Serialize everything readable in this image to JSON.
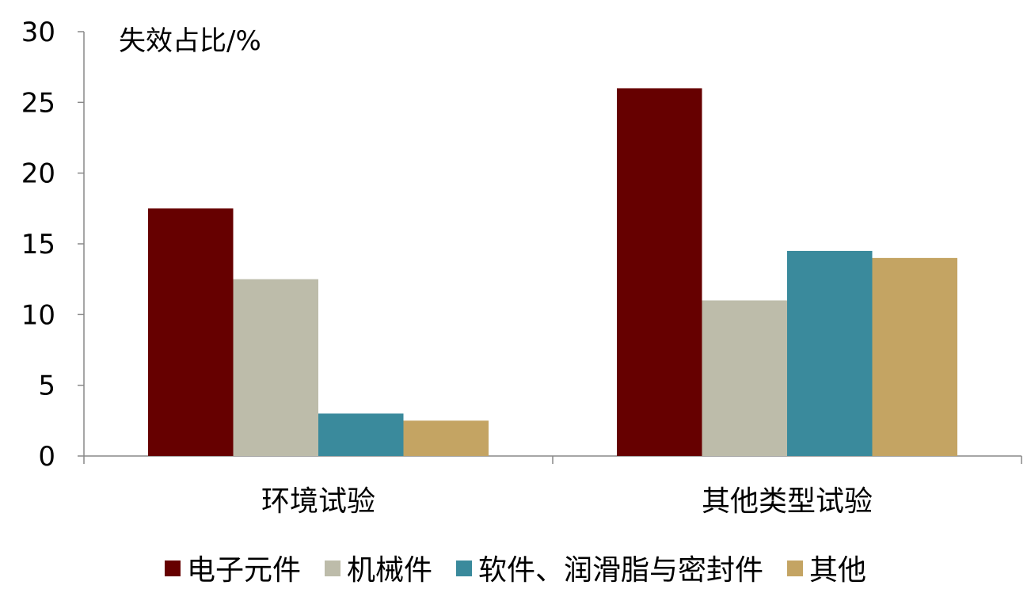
{
  "chart_data": {
    "type": "bar",
    "title": "",
    "xlabel": "",
    "ylabel": "失效占比/%",
    "ylim": [
      0,
      30
    ],
    "yticks": [
      0,
      5,
      10,
      15,
      20,
      25,
      30
    ],
    "categories": [
      "环境试验",
      "其他类型试验"
    ],
    "series": [
      {
        "name": "电子元件",
        "values": [
          17.5,
          26
        ],
        "color": "#660000"
      },
      {
        "name": "机械件",
        "values": [
          12.5,
          11
        ],
        "color": "#bdbcaa"
      },
      {
        "name": "软件、润滑脂与密封件",
        "values": [
          3,
          14.5
        ],
        "color": "#3a8a9c"
      },
      {
        "name": "其他",
        "values": [
          2.5,
          14
        ],
        "color": "#c4a463"
      }
    ],
    "grid": false,
    "legend_position": "bottom"
  }
}
